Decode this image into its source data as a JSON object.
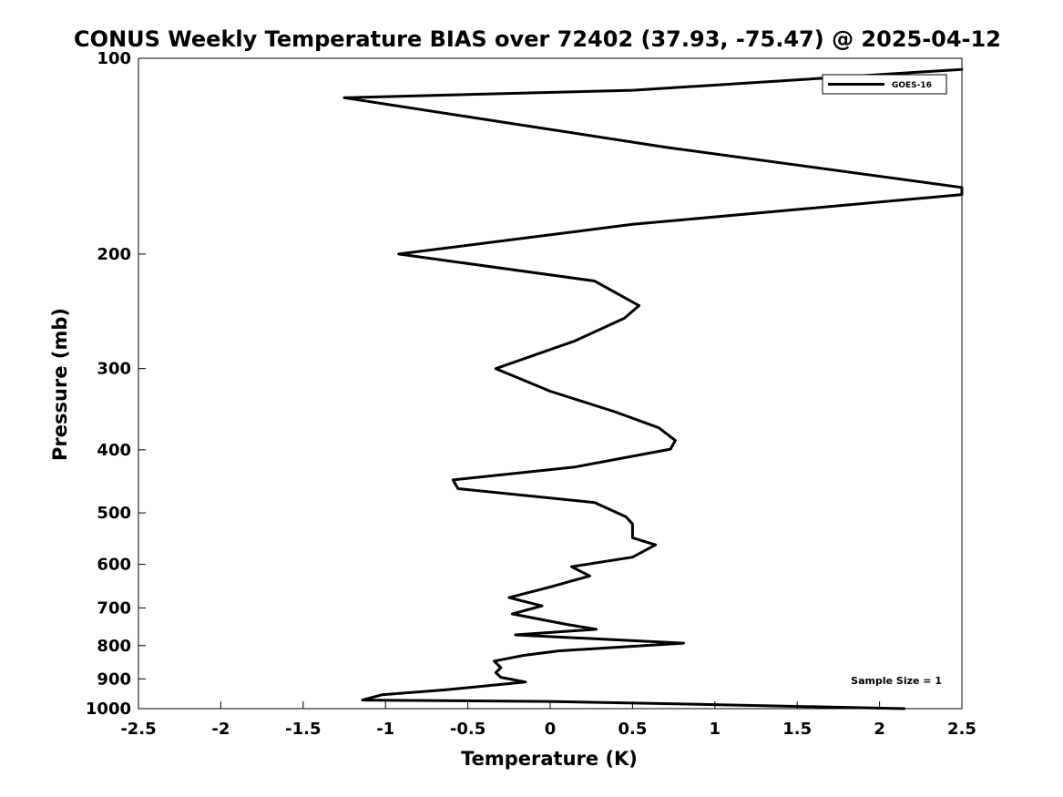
{
  "chart_data": {
    "type": "line",
    "title": "CONUS Weekly Temperature BIAS over 72402 (37.93, -75.47) @ 2025-04-12",
    "xlabel": "Temperature (K)",
    "ylabel": "Pressure (mb)",
    "xlim": [
      -2.5,
      2.5
    ],
    "ylim": [
      1000,
      100
    ],
    "yscale": "log",
    "xticks": [
      "-2.5",
      "-2",
      "-1.5",
      "-1",
      "-0.5",
      "0",
      "0.5",
      "1",
      "1.5",
      "2",
      "2.5"
    ],
    "yticks": [
      "100",
      "200",
      "300",
      "400",
      "500",
      "600",
      "700",
      "800",
      "900",
      "1000"
    ],
    "grid": false,
    "legend_position": "top-right",
    "annotation": "Sample Size = 1",
    "series": [
      {
        "name": "GOES-16",
        "color": "#000000",
        "points": [
          [
            2.5,
            104
          ],
          [
            0.5,
            112
          ],
          [
            -1.25,
            115
          ],
          [
            0.7,
            137
          ],
          [
            2.5,
            158
          ],
          [
            2.5,
            162
          ],
          [
            0.5,
            180
          ],
          [
            -0.92,
            200
          ],
          [
            0.27,
            220
          ],
          [
            0.54,
            240
          ],
          [
            0.45,
            251
          ],
          [
            0.15,
            272
          ],
          [
            -0.33,
            300
          ],
          [
            0.0,
            325
          ],
          [
            0.4,
            350
          ],
          [
            0.66,
            370
          ],
          [
            0.76,
            387
          ],
          [
            0.73,
            399
          ],
          [
            0.15,
            425
          ],
          [
            -0.59,
            445
          ],
          [
            -0.56,
            459
          ],
          [
            0.27,
            482
          ],
          [
            0.46,
            507
          ],
          [
            0.5,
            520
          ],
          [
            0.5,
            546
          ],
          [
            0.64,
            560
          ],
          [
            0.5,
            585
          ],
          [
            0.13,
            605
          ],
          [
            0.24,
            625
          ],
          [
            0.0,
            650
          ],
          [
            -0.25,
            675
          ],
          [
            -0.05,
            695
          ],
          [
            -0.23,
            715
          ],
          [
            0.1,
            742
          ],
          [
            0.28,
            755
          ],
          [
            -0.21,
            770
          ],
          [
            0.81,
            793
          ],
          [
            0.05,
            815
          ],
          [
            -0.16,
            828
          ],
          [
            -0.34,
            845
          ],
          [
            -0.3,
            865
          ],
          [
            -0.33,
            880
          ],
          [
            -0.3,
            895
          ],
          [
            -0.15,
            910
          ],
          [
            -0.63,
            935
          ],
          [
            -1.02,
            952
          ],
          [
            -1.14,
            970
          ],
          [
            0.0,
            975
          ],
          [
            1.0,
            986
          ],
          [
            2.15,
            1000
          ]
        ]
      }
    ]
  }
}
